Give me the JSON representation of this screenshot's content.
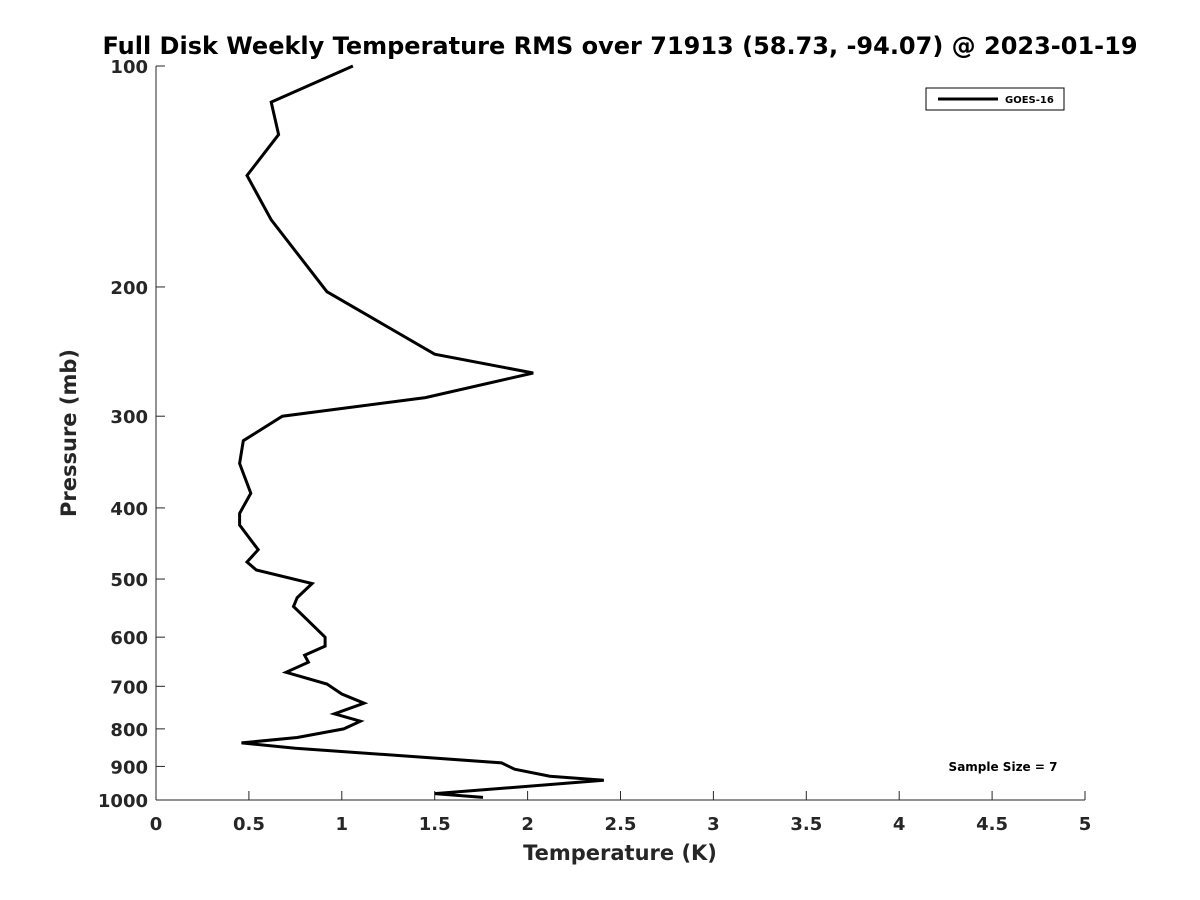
{
  "chart_data": {
    "type": "line",
    "title": "Full Disk Weekly Temperature RMS over 71913 (58.73, -94.07) @ 2023-01-19",
    "xlabel": "Temperature (K)",
    "ylabel": "Pressure (mb)",
    "xlim": [
      0,
      5
    ],
    "ylim": [
      100,
      1000
    ],
    "y_scale": "log",
    "y_reversed": true,
    "grid": false,
    "legend_placement": "top-right",
    "x_ticks": [
      "0",
      "0.5",
      "1",
      "1.5",
      "2",
      "2.5",
      "3",
      "3.5",
      "4",
      "4.5",
      "5"
    ],
    "y_ticks": [
      "100",
      "200",
      "300",
      "400",
      "500",
      "600",
      "700",
      "800",
      "900",
      "1000"
    ],
    "annotation": "Sample Size = 7",
    "series": [
      {
        "name": "GOES-16",
        "color": "#000000",
        "x": [
          1.06,
          0.62,
          0.66,
          0.49,
          0.62,
          0.92,
          1.5,
          2.03,
          1.45,
          0.68,
          0.47,
          0.45,
          0.51,
          0.45,
          0.45,
          0.55,
          0.49,
          0.54,
          0.84,
          0.76,
          0.74,
          0.81,
          0.91,
          0.91,
          0.8,
          0.82,
          0.7,
          0.92,
          1.0,
          1.12,
          0.96,
          1.1,
          1.01,
          0.76,
          0.46,
          0.75,
          1.86,
          1.93,
          2.12,
          2.41,
          1.5,
          1.76
        ],
        "y": [
          100,
          112,
          124,
          141,
          162,
          203,
          247,
          262,
          283,
          300,
          324,
          348,
          382,
          407,
          422,
          456,
          474,
          486,
          507,
          530,
          545,
          567,
          600,
          617,
          635,
          649,
          670,
          695,
          717,
          738,
          763,
          781,
          800,
          822,
          836,
          850,
          890,
          908,
          928,
          940,
          980,
          992
        ]
      }
    ]
  }
}
